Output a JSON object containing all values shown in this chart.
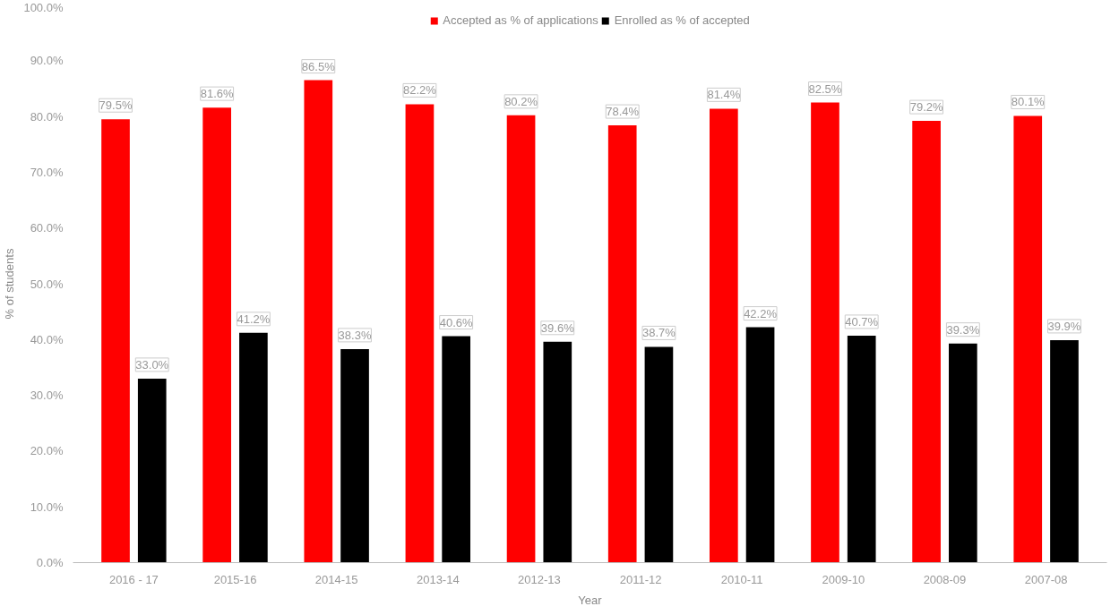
{
  "chart_data": {
    "type": "bar",
    "xlabel": "Year",
    "ylabel": "% of students",
    "categories": [
      "2016 - 17",
      "2015-16",
      "2014-15",
      "2013-14",
      "2012-13",
      "2011-12",
      "2010-11",
      "2009-10",
      "2008-09",
      "2007-08"
    ],
    "series": [
      {
        "name": "Accepted as % of applications",
        "color": "#ff0000",
        "values": [
          79.5,
          81.6,
          86.5,
          82.2,
          80.2,
          78.4,
          81.4,
          82.5,
          79.2,
          80.1
        ],
        "value_labels": [
          "79.5%",
          "81.6%",
          "86.5%",
          "82.2%",
          "80.2%",
          "78.4%",
          "81.4%",
          "82.5%",
          "79.2%",
          "80.1%"
        ]
      },
      {
        "name": "Enrolled as % of accepted",
        "color": "#000000",
        "values": [
          33.0,
          41.2,
          38.3,
          40.6,
          39.6,
          38.7,
          42.2,
          40.7,
          39.3,
          39.9
        ],
        "value_labels": [
          "33.0%",
          "41.2%",
          "38.3%",
          "40.6%",
          "39.6%",
          "38.7%",
          "42.2%",
          "40.7%",
          "39.3%",
          "39.9%"
        ]
      }
    ],
    "ylim": [
      0,
      100
    ],
    "yticks": [
      {
        "value": 0,
        "label": "0.0%"
      },
      {
        "value": 10,
        "label": "10.0%"
      },
      {
        "value": 20,
        "label": "20.0%"
      },
      {
        "value": 30,
        "label": "30.0%"
      },
      {
        "value": 40,
        "label": "40.0%"
      },
      {
        "value": 50,
        "label": "50.0%"
      },
      {
        "value": 60,
        "label": "60.0%"
      },
      {
        "value": 70,
        "label": "70.0%"
      },
      {
        "value": 80,
        "label": "80.0%"
      },
      {
        "value": 90,
        "label": "90.0%"
      },
      {
        "value": 100,
        "label": "100.0%"
      }
    ],
    "grid": false,
    "legend": "top"
  }
}
